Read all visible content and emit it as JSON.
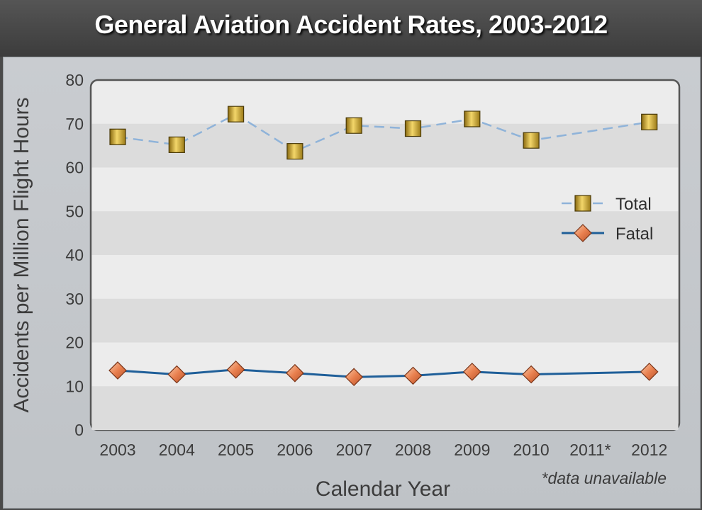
{
  "chart_data": {
    "type": "line",
    "title": "General Aviation Accident Rates, 2003-2012",
    "xlabel": "Calendar Year",
    "ylabel": "Accidents per Million Flight Hours",
    "categories": [
      "2003",
      "2004",
      "2005",
      "2006",
      "2007",
      "2008",
      "2009",
      "2010",
      "2011*",
      "2012"
    ],
    "yticks": [
      "0",
      "10",
      "20",
      "30",
      "40",
      "50",
      "60",
      "70",
      "80"
    ],
    "ylim": [
      0,
      80
    ],
    "series": [
      {
        "name": "Total",
        "values": [
          67,
          65.2,
          72.2,
          63.7,
          69.6,
          68.9,
          71.1,
          66.2,
          null,
          70.4
        ],
        "color": "#8fb3d9",
        "style": "dashed",
        "marker": "square"
      },
      {
        "name": "Fatal",
        "values": [
          13.6,
          12.7,
          13.8,
          13.0,
          12.1,
          12.4,
          13.3,
          12.7,
          null,
          13.3
        ],
        "color": "#1f5f99",
        "style": "solid",
        "marker": "diamond"
      }
    ],
    "legend": "right",
    "grid": "alternating-bands",
    "note": "*data unavailable"
  }
}
